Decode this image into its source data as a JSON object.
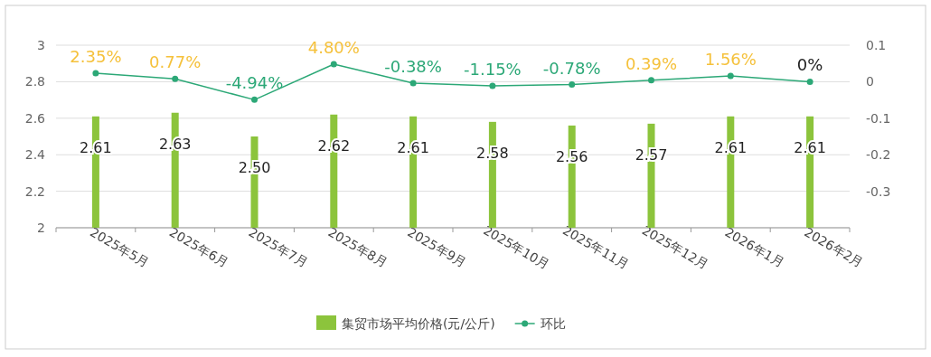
{
  "chart_data": {
    "type": "bar",
    "categories": [
      "2025年5月",
      "2025年6月",
      "2025年7月",
      "2025年8月",
      "2025年9月",
      "2025年10月",
      "2025年11月",
      "2025年12月",
      "2026年1月",
      "2026年2月"
    ],
    "series": [
      {
        "name": "集贸市场平均价格(元/公斤)",
        "color": "#8cc43c",
        "values": [
          2.61,
          2.63,
          2.5,
          2.62,
          2.61,
          2.58,
          2.56,
          2.57,
          2.61,
          2.61
        ],
        "value_labels": [
          "2.61",
          "2.63",
          "2.50",
          "2.62",
          "2.61",
          "2.58",
          "2.56",
          "2.57",
          "2.61",
          "2.61"
        ]
      },
      {
        "name": "环比",
        "type": "line",
        "axis": "y2",
        "color": "#2ca877",
        "values": [
          0.0235,
          0.0077,
          -0.0494,
          0.048,
          -0.0038,
          -0.0115,
          -0.0078,
          0.0039,
          0.0156,
          0
        ],
        "value_labels": [
          "2.35%",
          "0.77%",
          "-4.94%",
          "4.80%",
          "-0.38%",
          "-1.15%",
          "-0.78%",
          "0.39%",
          "1.56%",
          "0%"
        ]
      }
    ],
    "ylim": [
      2,
      3
    ],
    "yticks": [
      2,
      2.2,
      2.4,
      2.6,
      2.8,
      3
    ],
    "y2lim": [
      -0.4,
      0.1
    ],
    "y2ticks": [
      -0.3,
      -0.2,
      -0.1,
      0,
      0.1
    ],
    "grid": "y",
    "legend": "bottom",
    "marker": "circle"
  }
}
